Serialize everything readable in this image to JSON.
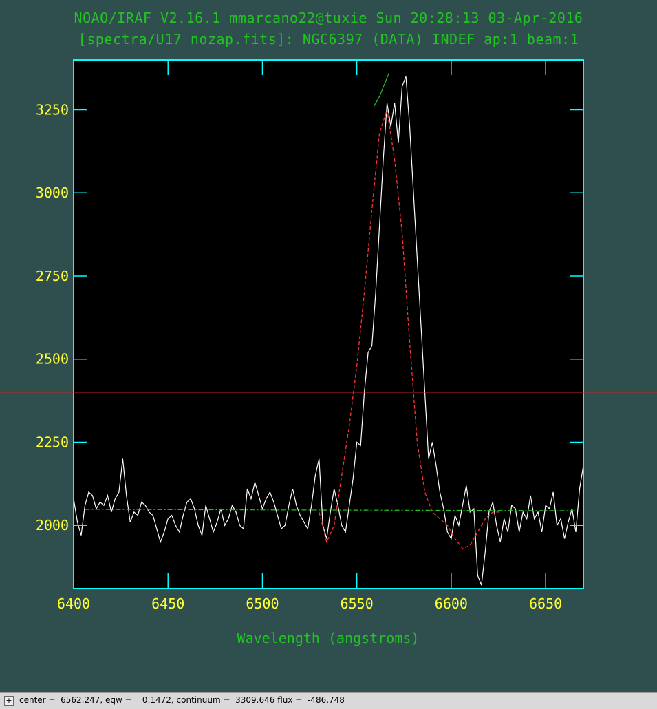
{
  "header": {
    "title1": "NOAO/IRAF V2.16.1 mmarcano22@tuxie Sun 20:28:13 03-Apr-2016",
    "title2": "[spectra/U17_nozap.fits]: NGC6397 (DATA) INDEF ap:1 beam:1"
  },
  "status_bar": {
    "expand_label": "+",
    "text": "center =  6562.247, eqw =    0.1472, continuum =  3309.646 flux =  -486.748"
  },
  "colors": {
    "background": "#2f4f4f",
    "plot_bg": "#000000",
    "axes": "#00ffff",
    "tick_labels": "#ffff33",
    "title": "#22c422",
    "spectrum": "#ffffff",
    "fit": "#ff3333",
    "continuum": "#22c422",
    "cursor": "#cc2222"
  },
  "chart_data": {
    "type": "line",
    "xlabel": "Wavelength (angstroms)",
    "ylabel": "",
    "xlim": [
      6400,
      6670
    ],
    "ylim": [
      1810,
      3400
    ],
    "xticks": [
      6400,
      6450,
      6500,
      6550,
      6600,
      6650
    ],
    "yticks": [
      2000,
      2250,
      2500,
      2750,
      3000,
      3250
    ],
    "grid": false,
    "cursor_y": 2400,
    "series": [
      {
        "role": "spectrum",
        "x": [
          6400,
          6402,
          6404,
          6406,
          6408,
          6410,
          6412,
          6414,
          6416,
          6418,
          6420,
          6422,
          6424,
          6426,
          6428,
          6430,
          6432,
          6434,
          6436,
          6438,
          6440,
          6442,
          6444,
          6446,
          6448,
          6450,
          6452,
          6454,
          6456,
          6458,
          6460,
          6462,
          6464,
          6466,
          6468,
          6470,
          6472,
          6474,
          6476,
          6478,
          6480,
          6482,
          6484,
          6486,
          6488,
          6490,
          6492,
          6494,
          6496,
          6498,
          6500,
          6502,
          6504,
          6506,
          6508,
          6510,
          6512,
          6514,
          6516,
          6518,
          6520,
          6522,
          6524,
          6526,
          6528,
          6530,
          6532,
          6534,
          6536,
          6538,
          6540,
          6542,
          6544,
          6546,
          6548,
          6550,
          6552,
          6554,
          6556,
          6558,
          6560,
          6562,
          6564,
          6566,
          6568,
          6570,
          6572,
          6574,
          6576,
          6578,
          6580,
          6582,
          6584,
          6586,
          6588,
          6590,
          6592,
          6594,
          6596,
          6598,
          6600,
          6602,
          6604,
          6606,
          6608,
          6610,
          6612,
          6614,
          6616,
          6618,
          6620,
          6622,
          6624,
          6626,
          6628,
          6630,
          6632,
          6634,
          6636,
          6638,
          6640,
          6642,
          6644,
          6646,
          6648,
          6650,
          6652,
          6654,
          6656,
          6658,
          6660,
          6662,
          6664,
          6666,
          6668,
          6670
        ],
        "y": [
          2080,
          2010,
          1970,
          2060,
          2100,
          2090,
          2050,
          2070,
          2060,
          2090,
          2040,
          2080,
          2100,
          2200,
          2090,
          2010,
          2040,
          2030,
          2070,
          2060,
          2040,
          2030,
          1990,
          1950,
          1980,
          2020,
          2030,
          2000,
          1980,
          2030,
          2070,
          2080,
          2050,
          2000,
          1970,
          2060,
          2020,
          1980,
          2010,
          2050,
          2000,
          2020,
          2060,
          2040,
          2000,
          1990,
          2110,
          2080,
          2130,
          2090,
          2050,
          2080,
          2100,
          2070,
          2030,
          1990,
          2000,
          2060,
          2110,
          2060,
          2030,
          2010,
          1990,
          2060,
          2150,
          2200,
          2000,
          1960,
          2040,
          2110,
          2060,
          2000,
          1980,
          2060,
          2140,
          2250,
          2240,
          2400,
          2520,
          2540,
          2700,
          2900,
          3100,
          3270,
          3200,
          3270,
          3150,
          3320,
          3350,
          3200,
          3000,
          2800,
          2600,
          2400,
          2200,
          2250,
          2180,
          2100,
          2050,
          1980,
          1960,
          2030,
          2000,
          2060,
          2120,
          2040,
          2050,
          1850,
          1820,
          1920,
          2040,
          2070,
          2000,
          1950,
          2020,
          1980,
          2060,
          2050,
          1980,
          2040,
          2020,
          2090,
          2020,
          2040,
          1980,
          2060,
          2050,
          2100,
          2000,
          2020,
          1960,
          2010,
          2050,
          1980,
          2110,
          2180
        ]
      },
      {
        "role": "fit",
        "x": [
          6530,
          6534,
          6538,
          6542,
          6546,
          6550,
          6554,
          6558,
          6562,
          6566,
          6570,
          6574,
          6578,
          6582,
          6586,
          6590,
          6594,
          6598,
          6602,
          6606,
          6610,
          6614,
          6618,
          6622,
          6626
        ],
        "y": [
          2040,
          1950,
          2000,
          2150,
          2300,
          2480,
          2700,
          2950,
          3180,
          3250,
          3100,
          2880,
          2550,
          2250,
          2100,
          2040,
          2020,
          2000,
          1960,
          1930,
          1940,
          1980,
          2020,
          2040,
          2040
        ]
      },
      {
        "role": "continuum",
        "x": [
          6406,
          6666
        ],
        "y": [
          2048,
          2044
        ]
      },
      {
        "role": "peak-fit",
        "x": [
          6559,
          6562,
          6567
        ],
        "y": [
          3260,
          3290,
          3360
        ]
      }
    ]
  }
}
